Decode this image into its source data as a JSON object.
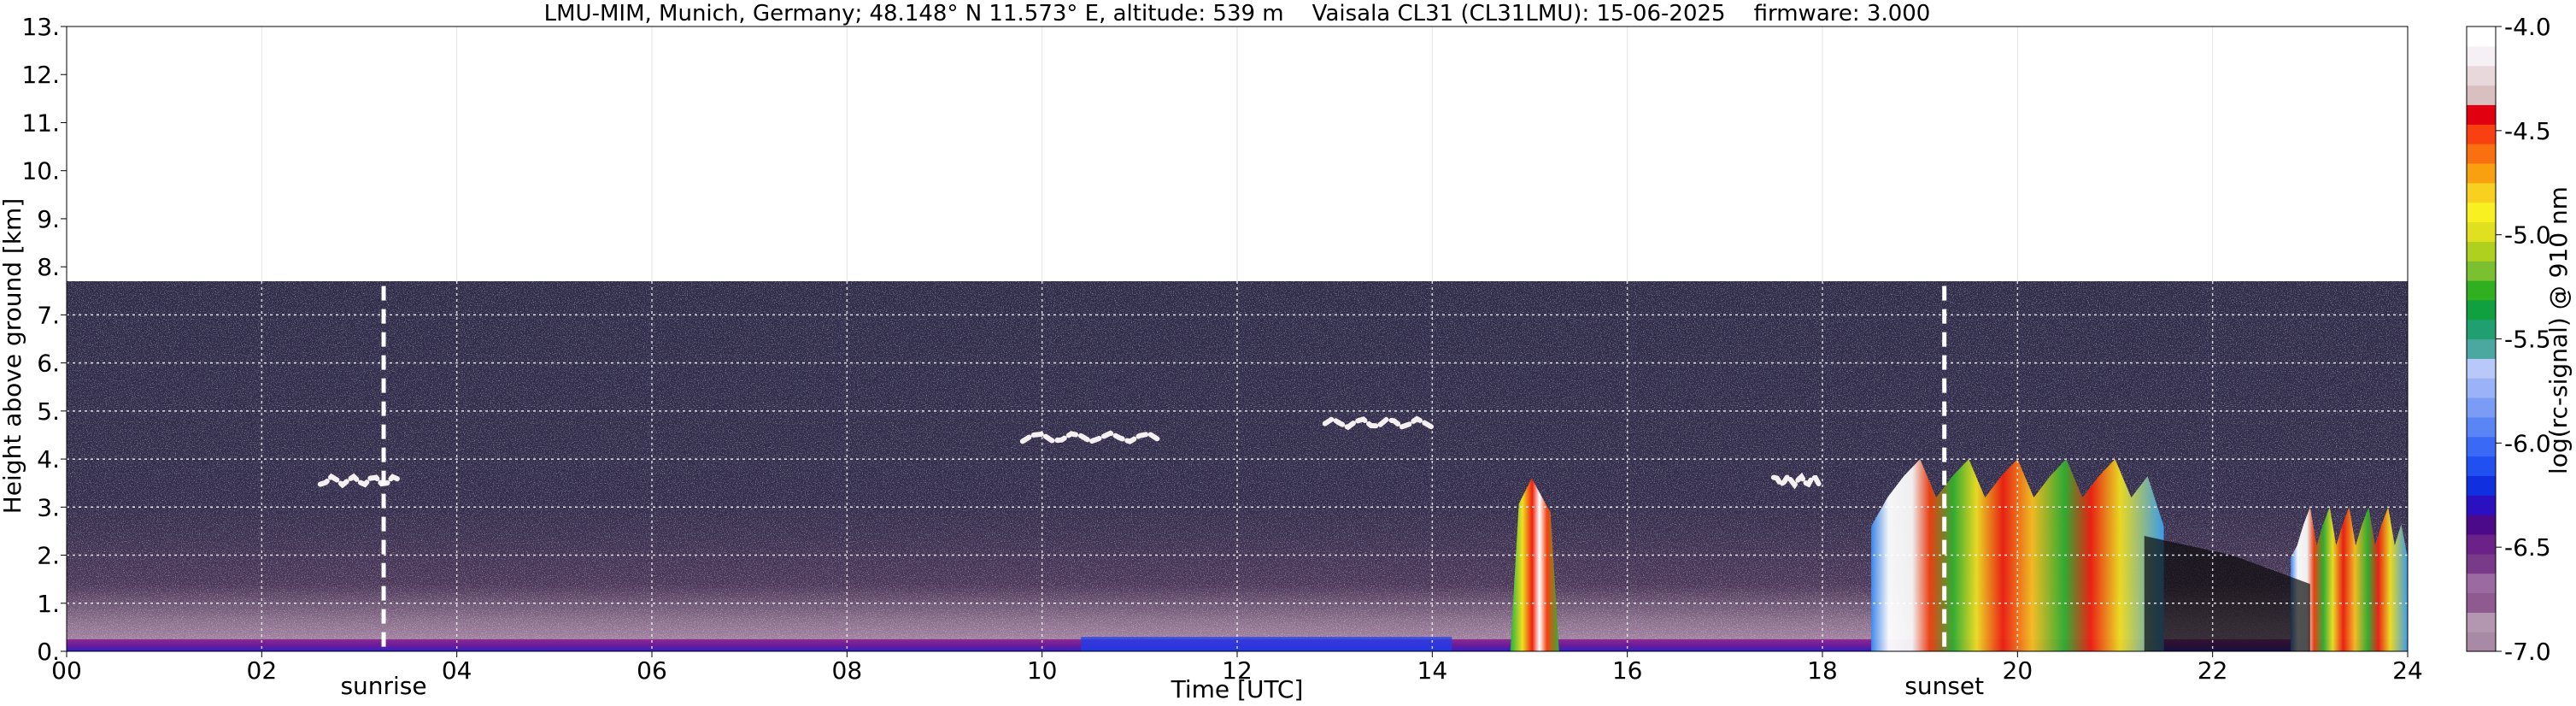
{
  "chart_data": {
    "type": "heatmap",
    "title": "LMU-MIM, Munich, Germany; 48.148° N 11.573° E, altitude: 539 m    Vaisala CL31 (CL31LMU): 15-06-2025    firmware: 3.000",
    "xlabel": "Time [UTC]",
    "ylabel": "Height above ground [km]",
    "xlim": [
      0,
      24
    ],
    "ylim": [
      0,
      13
    ],
    "x_ticks": [
      "00",
      "02",
      "04",
      "06",
      "08",
      "10",
      "12",
      "14",
      "16",
      "18",
      "20",
      "22",
      "24"
    ],
    "y_ticks": [
      "0.",
      "1.",
      "2.",
      "3.",
      "4.",
      "5.",
      "6.",
      "7.",
      "8.",
      "9.",
      "10.",
      "11.",
      "12.",
      "13."
    ],
    "grid": true,
    "annotations": [
      {
        "text": "sunrise",
        "x": 3.25
      },
      {
        "text": "sunset",
        "x": 19.25
      }
    ],
    "data_top_km": 7.7,
    "colorbar": {
      "label": "log(rc-signal) @ 910 nm",
      "range": [
        -7.0,
        -4.0
      ],
      "ticks": [
        "-4.0",
        "-4.5",
        "-5.0",
        "-5.5",
        "-6.0",
        "-6.5",
        "-7.0"
      ],
      "tick_values": [
        -4.0,
        -4.5,
        -5.0,
        -5.5,
        -6.0,
        -6.5,
        -7.0
      ],
      "colors": [
        "#a88aa6",
        "#b397b1",
        "#8f5a8f",
        "#9b6aa0",
        "#7a3a8a",
        "#6a2288",
        "#4a0a8a",
        "#2a10c0",
        "#1030e0",
        "#2050f0",
        "#3a6af5",
        "#5a85f5",
        "#7a9cf5",
        "#9ab2f8",
        "#b8c8f8",
        "#4aa8a0",
        "#20a070",
        "#10a040",
        "#30b020",
        "#7ac030",
        "#b0d020",
        "#e0e020",
        "#f8f020",
        "#f8d020",
        "#f8a010",
        "#f87010",
        "#f84010",
        "#e00010",
        "#d8c0c0",
        "#e8d8dc",
        "#f4f0f4",
        "#ffffff"
      ]
    },
    "features": [
      {
        "kind": "boundary_layer",
        "x_start": 0,
        "x_end": 24,
        "top_km": 0.25
      },
      {
        "kind": "cloud_layer",
        "x_start": 2.6,
        "x_end": 3.4,
        "height_km": 3.55
      },
      {
        "kind": "cloud_layer",
        "x_start": 9.8,
        "x_end": 11.2,
        "height_km": 4.45
      },
      {
        "kind": "cloud_layer",
        "x_start": 12.9,
        "x_end": 14.0,
        "height_km": 4.75
      },
      {
        "kind": "cloud_layer",
        "x_start": 17.5,
        "x_end": 18.0,
        "height_km": 3.55
      },
      {
        "kind": "rain_shaft",
        "x_start": 14.8,
        "x_end": 15.3,
        "top_km": 3.6
      },
      {
        "kind": "convective_cloud",
        "x_start": 18.5,
        "x_end": 21.5,
        "top_km": 4.0
      },
      {
        "kind": "convective_cloud",
        "x_start": 22.8,
        "x_end": 24.0,
        "top_km": 3.0
      }
    ]
  }
}
